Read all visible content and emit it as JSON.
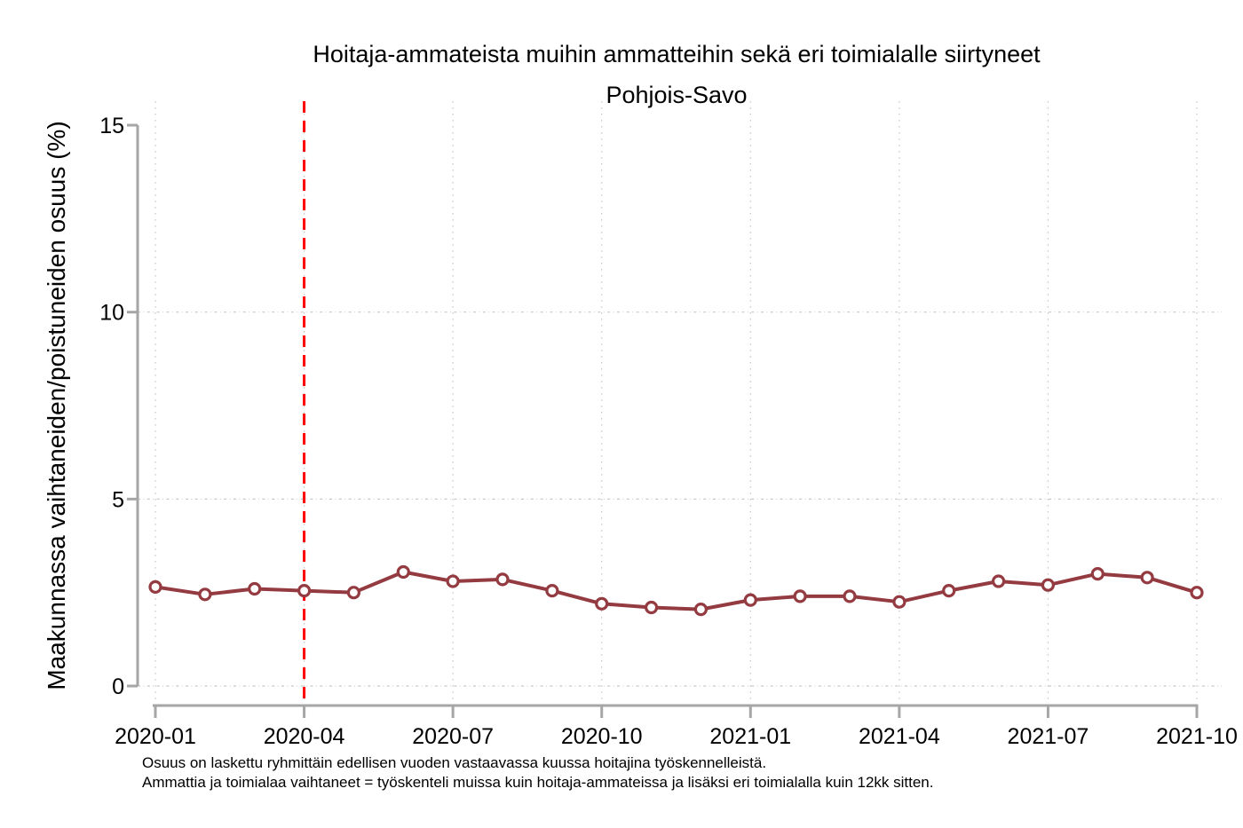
{
  "chart_data": {
    "type": "line",
    "title": "Hoitaja-ammateista muihin ammatteihin sekä eri toimialalle siirtyneet",
    "subtitle": "Pohjois-Savo",
    "ylabel": "Maakunnassa vaihtaneiden/poistuneiden osuus (%)",
    "xlabel": "",
    "x": [
      "2020-01",
      "2020-02",
      "2020-03",
      "2020-04",
      "2020-05",
      "2020-06",
      "2020-07",
      "2020-08",
      "2020-09",
      "2020-10",
      "2020-11",
      "2020-12",
      "2021-01",
      "2021-02",
      "2021-03",
      "2021-04",
      "2021-05",
      "2021-06",
      "2021-07",
      "2021-08",
      "2021-09",
      "2021-10"
    ],
    "values": [
      2.65,
      2.45,
      2.6,
      2.55,
      2.5,
      3.05,
      2.8,
      2.85,
      2.55,
      2.2,
      2.1,
      2.05,
      2.3,
      2.4,
      2.4,
      2.25,
      2.55,
      2.8,
      2.7,
      3.0,
      2.9,
      2.5
    ],
    "ylim": [
      0,
      15.6
    ],
    "yticks": [
      0,
      5,
      10,
      15
    ],
    "xtick_labels": [
      "2020-01",
      "2020-04",
      "2020-07",
      "2020-10",
      "2021-01",
      "2021-04",
      "2021-07",
      "2021-10"
    ],
    "grid": true,
    "legend": "none",
    "reference_line_x": "2020-04",
    "marker": "hollow-circle",
    "colors": {
      "line": "#943b41",
      "marker_fill": "#ffffff",
      "reference_line": "#fe0000",
      "axis": "#a6a6a6",
      "grid": "#c8c8c8",
      "text": "#000000",
      "background": "#ffffff"
    },
    "notes": [
      "Osuus on laskettu ryhmittäin edellisen vuoden vastaavassa kuussa hoitajina työskennelleistä.",
      "Ammattia ja toimialaa vaihtaneet = työskenteli muissa kuin hoitaja-ammateissa ja lisäksi eri toimialalla kuin 12kk sitten."
    ]
  }
}
